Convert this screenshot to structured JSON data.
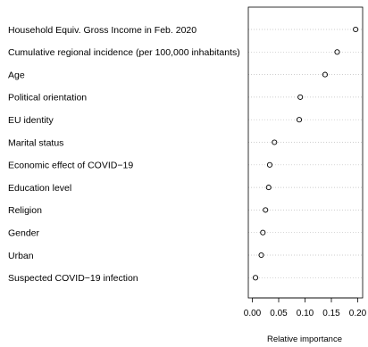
{
  "chart_data": {
    "type": "scatter",
    "title": "",
    "xlabel": "Relative importance",
    "ylabel": "",
    "xlim": [
      0,
      0.2
    ],
    "x_ticks": [
      "0.00",
      "0.05",
      "0.10",
      "0.15",
      "0.20"
    ],
    "x_tick_values": [
      0,
      0.05,
      0.1,
      0.15,
      0.2
    ],
    "grid": "horizontal dotted lines at each variable",
    "marker": "open circle",
    "colors": {
      "points": "#000000",
      "grid": "#bebebe",
      "frame": "#000000"
    },
    "categories": [
      "Household Equiv. Gross Income in Feb. 2020",
      "Cumulative regional incidence (per 100,000 inhabitants)",
      "Age",
      "Political orientation",
      "EU identity",
      "Marital status",
      "Economic effect of COVID−19",
      "Education level",
      "Religion",
      "Gender",
      "Urban",
      "Suspected COVID−19 infection"
    ],
    "values": [
      0.196,
      0.161,
      0.138,
      0.091,
      0.089,
      0.042,
      0.033,
      0.031,
      0.025,
      0.02,
      0.017,
      0.006
    ]
  }
}
